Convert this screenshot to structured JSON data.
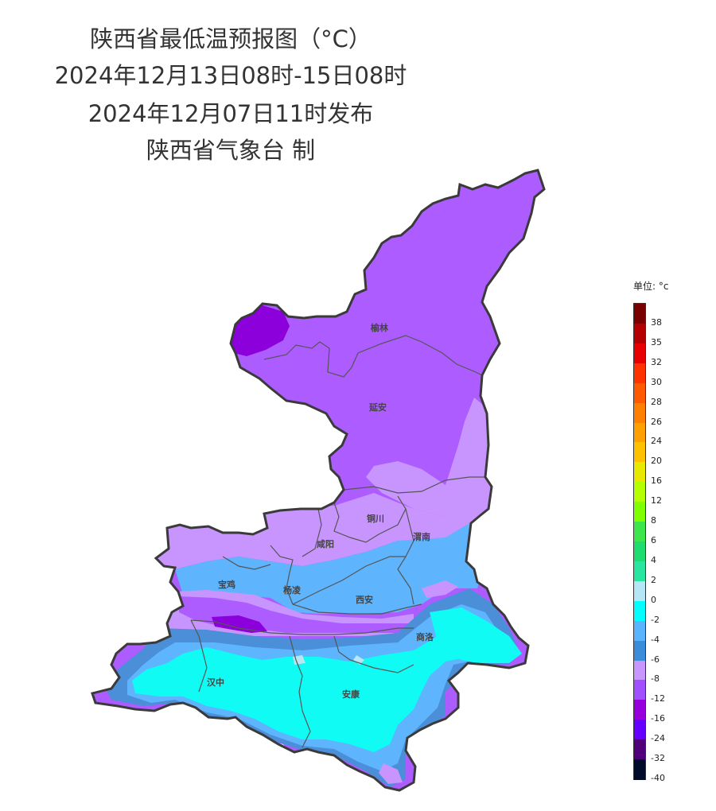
{
  "title": {
    "line1": "陕西省最低温预报图（°C）",
    "line2": "2024年12月13日08时-15日08时",
    "line3": "2024年12月07日11时发布",
    "line4": "陕西省气象台 制"
  },
  "cities": [
    {
      "key": "yulin",
      "label": "榆林"
    },
    {
      "key": "yanan",
      "label": "延安"
    },
    {
      "key": "tongchuan",
      "label": "铜川"
    },
    {
      "key": "xianyang",
      "label": "咸阳"
    },
    {
      "key": "weinan",
      "label": "渭南"
    },
    {
      "key": "baoji",
      "label": "宝鸡"
    },
    {
      "key": "yangling",
      "label": "杨凌"
    },
    {
      "key": "xian",
      "label": "西安"
    },
    {
      "key": "shangluo",
      "label": "商洛"
    },
    {
      "key": "hanzhong",
      "label": "汉中"
    },
    {
      "key": "ankang",
      "label": "安康"
    }
  ],
  "legend": {
    "unit_label": "单位: °c",
    "ticks": [
      "38",
      "35",
      "32",
      "30",
      "28",
      "26",
      "24",
      "20",
      "16",
      "12",
      "8",
      "6",
      "4",
      "2",
      "0",
      "-2",
      "-4",
      "-6",
      "-8",
      "-12",
      "-16",
      "-24",
      "-32",
      "-40"
    ],
    "colors": [
      "#7a0000",
      "#b40000",
      "#e60000",
      "#ff3300",
      "#ff5a00",
      "#ff7f00",
      "#ffa000",
      "#ffc000",
      "#e8e800",
      "#b4ff00",
      "#80ff00",
      "#3ce64b",
      "#1edc6e",
      "#28e6a0",
      "#b4e6f5",
      "#00ffff",
      "#5ab4ff",
      "#3c8cdc",
      "#c896ff",
      "#a050ff",
      "#9600dc",
      "#6400ff",
      "#50007a",
      "#000a2a"
    ]
  },
  "zone_colors": {
    "minus16": "#ad5cff",
    "minus12": "#c895ff",
    "minus8": "#4a8fd8",
    "minus6": "#5eb4fd",
    "minus4": "#10fbf4",
    "minus2": "#b8e6f4",
    "minus24": "#8c00dc",
    "minus32": "#580080"
  }
}
